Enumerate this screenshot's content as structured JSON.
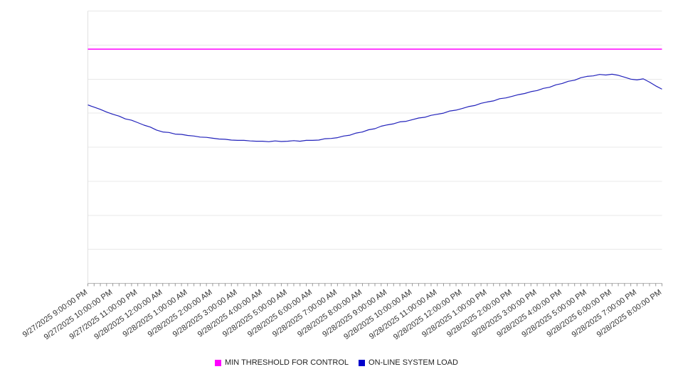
{
  "chart_data": {
    "type": "line",
    "title": "",
    "xlabel": "",
    "ylabel": "",
    "ylim": [
      0,
      100
    ],
    "y_axis_labels_visible": false,
    "gridlines": true,
    "grid_divisions": 8,
    "legend_position": "bottom",
    "x_labels": [
      "9/27/2025 9:00:00 PM",
      "9/27/2025 10:00:00 PM",
      "9/27/2025 11:00:00 PM",
      "9/28/2025 12:00:00 AM",
      "9/28/2025 1:00:00 AM",
      "9/28/2025 2:00:00 AM",
      "9/28/2025 3:00:00 AM",
      "9/28/2025 4:00:00 AM",
      "9/28/2025 5:00:00 AM",
      "9/28/2025 6:00:00 AM",
      "9/28/2025 7:00:00 AM",
      "9/28/2025 8:00:00 AM",
      "9/28/2025 9:00:00 AM",
      "9/28/2025 10:00:00 AM",
      "9/28/2025 11:00:00 AM",
      "9/28/2025 12:00:00 PM",
      "9/28/2025 1:00:00 PM",
      "9/28/2025 2:00:00 PM",
      "9/28/2025 3:00:00 PM",
      "9/28/2025 4:00:00 PM",
      "9/28/2025 5:00:00 PM",
      "9/28/2025 6:00:00 PM",
      "9/28/2025 7:00:00 PM",
      "9/28/2025 8:00:00 PM"
    ],
    "series": [
      {
        "name": "MIN THRESHOLD FOR CONTROL",
        "type": "threshold",
        "color": "#ff00ff",
        "value": 86
      },
      {
        "name": "ON-LINE SYSTEM LOAD",
        "type": "line",
        "color": "#2222bb",
        "swatch_color": "#0000cc",
        "points_per_hour": 4,
        "values": [
          65.5,
          64.7,
          63.9,
          62.9,
          62.1,
          61.4,
          60.4,
          59.9,
          59.0,
          58.1,
          57.4,
          56.3,
          55.6,
          55.4,
          54.8,
          54.7,
          54.3,
          54.1,
          53.7,
          53.6,
          53.3,
          53.0,
          52.9,
          52.6,
          52.5,
          52.5,
          52.3,
          52.2,
          52.2,
          52.0,
          52.3,
          52.1,
          52.2,
          52.4,
          52.2,
          52.5,
          52.5,
          52.6,
          53.1,
          53.2,
          53.5,
          54.1,
          54.4,
          55.2,
          55.6,
          56.4,
          56.8,
          57.7,
          58.2,
          58.6,
          59.3,
          59.5,
          60.1,
          60.7,
          61.0,
          61.7,
          62.1,
          62.5,
          63.3,
          63.6,
          64.2,
          64.9,
          65.3,
          66.1,
          66.6,
          67.0,
          67.8,
          68.1,
          68.7,
          69.3,
          69.7,
          70.4,
          70.8,
          71.6,
          72.0,
          72.9,
          73.4,
          74.2,
          74.6,
          75.5,
          76.0,
          76.2,
          76.7,
          76.5,
          76.8,
          76.4,
          75.7,
          75.0,
          74.7,
          75.1,
          73.9,
          72.5,
          71.3
        ]
      }
    ]
  },
  "legend": {
    "items": [
      {
        "label": "MIN THRESHOLD FOR CONTROL",
        "color": "#ff00ff"
      },
      {
        "label": "ON-LINE SYSTEM LOAD",
        "color": "#0000cc"
      }
    ]
  }
}
